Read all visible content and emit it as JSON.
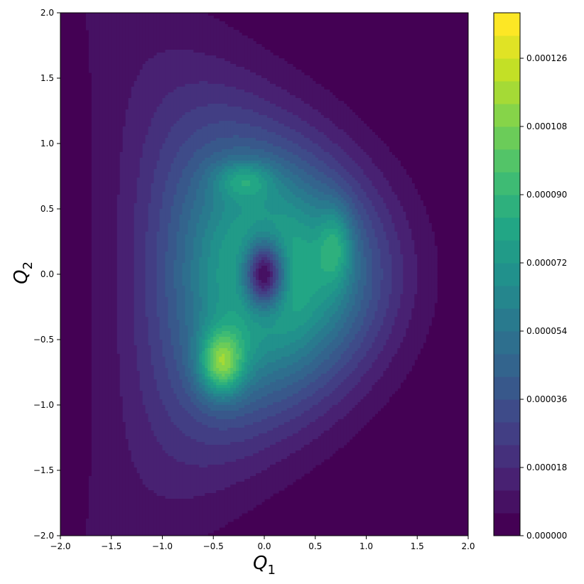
{
  "chart_data": {
    "type": "heatmap",
    "subtype": "filled-contour",
    "title": "",
    "xlabel": "Q",
    "xlabel_sub": "1",
    "ylabel": "Q",
    "ylabel_sub": "2",
    "xlim": [
      -2.0,
      2.0
    ],
    "ylim": [
      -2.0,
      2.0
    ],
    "x_ticks": [
      {
        "value": -2.0,
        "label": "−2.0"
      },
      {
        "value": -1.5,
        "label": "−1.5"
      },
      {
        "value": -1.0,
        "label": "−1.0"
      },
      {
        "value": -0.5,
        "label": "−0.5"
      },
      {
        "value": 0.0,
        "label": "0.0"
      },
      {
        "value": 0.5,
        "label": "0.5"
      },
      {
        "value": 1.0,
        "label": "1.0"
      },
      {
        "value": 1.5,
        "label": "1.5"
      },
      {
        "value": 2.0,
        "label": "2.0"
      }
    ],
    "y_ticks": [
      {
        "value": -2.0,
        "label": "−2.0"
      },
      {
        "value": -1.5,
        "label": "−1.5"
      },
      {
        "value": -1.0,
        "label": "−1.0"
      },
      {
        "value": -0.5,
        "label": "−0.5"
      },
      {
        "value": 0.0,
        "label": "0.0"
      },
      {
        "value": 0.5,
        "label": "0.5"
      },
      {
        "value": 1.0,
        "label": "1.0"
      },
      {
        "value": 1.5,
        "label": "1.5"
      },
      {
        "value": 2.0,
        "label": "2.0"
      }
    ],
    "colormap": "viridis",
    "levels_count": 23,
    "colorbar": {
      "min": 0.0,
      "max": 0.000138,
      "ticks": [
        {
          "value": 0.0,
          "label": "0.000000"
        },
        {
          "value": 1.8e-05,
          "label": "0.000018"
        },
        {
          "value": 3.6e-05,
          "label": "0.000036"
        },
        {
          "value": 5.4e-05,
          "label": "0.000054"
        },
        {
          "value": 7.2e-05,
          "label": "0.000072"
        },
        {
          "value": 9e-05,
          "label": "0.000090"
        },
        {
          "value": 0.000108,
          "label": "0.000108"
        },
        {
          "value": 0.000126,
          "label": "0.000126"
        }
      ]
    },
    "features": [
      {
        "kind": "peak",
        "x": -0.42,
        "y": -0.68,
        "value": 0.000136
      },
      {
        "kind": "peak",
        "x": -0.2,
        "y": 0.72,
        "value": 9.6e-05
      },
      {
        "kind": "peak",
        "x": 0.7,
        "y": 0.22,
        "value": 9.6e-05
      },
      {
        "kind": "minimum",
        "x": 0.0,
        "y": 0.0,
        "value": 4e-06
      }
    ],
    "grid": false
  }
}
